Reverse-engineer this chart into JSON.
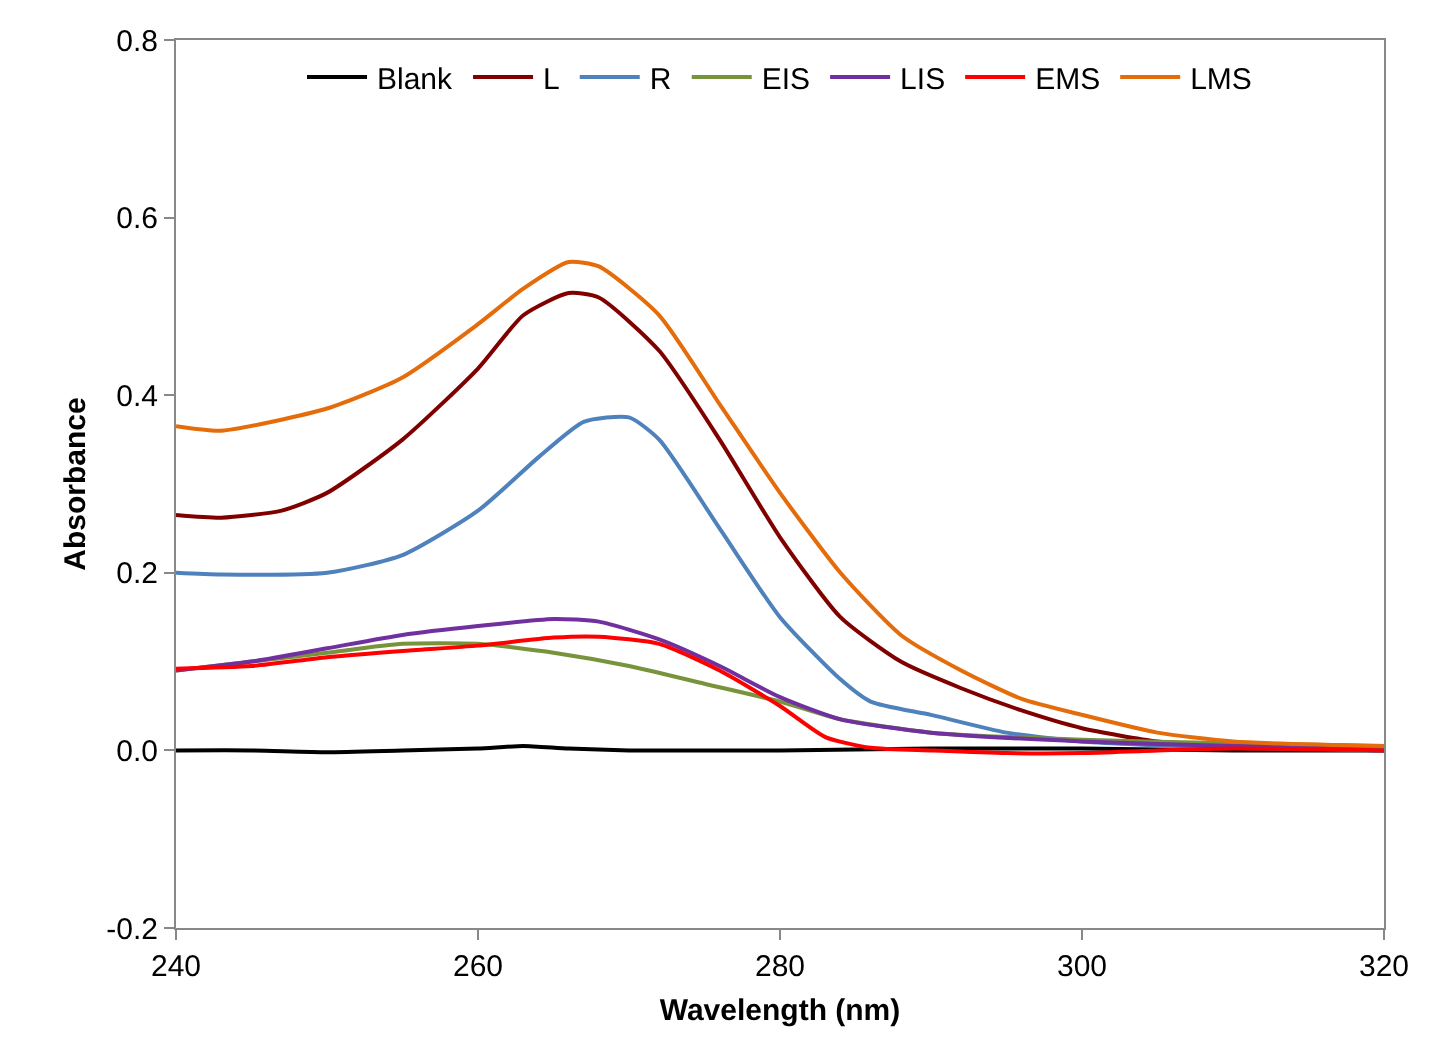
{
  "chart_data": {
    "type": "line",
    "xlabel": "Wavelength (nm)",
    "ylabel": "Absorbance",
    "xlim": [
      240,
      320
    ],
    "xticks": [
      240,
      260,
      280,
      300,
      320
    ],
    "ylim": [
      -0.2,
      0.8
    ],
    "yticks": [
      -0.2,
      {
        "value": 0,
        "label": "0.0"
      },
      0.2,
      0.4,
      0.6,
      0.8
    ],
    "legend": "top",
    "marker": "none",
    "line_style": "solid",
    "series": [
      {
        "name": "Blank",
        "color": "#000000",
        "x": [
          240,
          245,
          250,
          255,
          260,
          263,
          266,
          270,
          280,
          290,
          300,
          310,
          320
        ],
        "values": [
          0.0,
          0.0,
          -0.002,
          0.0,
          0.002,
          0.005,
          0.002,
          0.0,
          0.0,
          0.002,
          0.002,
          0.0,
          0.0
        ]
      },
      {
        "name": "L",
        "color": "#800000",
        "x": [
          240,
          243,
          247,
          250,
          255,
          260,
          263,
          266,
          268,
          272,
          276,
          280,
          284,
          288,
          292,
          296,
          300,
          305,
          310,
          320
        ],
        "values": [
          0.265,
          0.262,
          0.27,
          0.29,
          0.35,
          0.43,
          0.49,
          0.515,
          0.51,
          0.45,
          0.35,
          0.24,
          0.15,
          0.1,
          0.07,
          0.045,
          0.025,
          0.01,
          0.005,
          0.0
        ]
      },
      {
        "name": "R",
        "color": "#4f81bd",
        "x": [
          240,
          243,
          250,
          255,
          260,
          264,
          267,
          270,
          272,
          276,
          280,
          284,
          286,
          290,
          295,
          300,
          310,
          320
        ],
        "values": [
          0.2,
          0.198,
          0.2,
          0.22,
          0.27,
          0.33,
          0.37,
          0.375,
          0.35,
          0.25,
          0.15,
          0.08,
          0.055,
          0.04,
          0.02,
          0.01,
          0.003,
          0.0
        ]
      },
      {
        "name": "EIS",
        "color": "#77933c",
        "x": [
          240,
          245,
          250,
          255,
          260,
          265,
          270,
          275,
          280,
          284,
          290,
          300,
          310,
          320
        ],
        "values": [
          0.09,
          0.1,
          0.11,
          0.12,
          0.12,
          0.11,
          0.095,
          0.075,
          0.055,
          0.035,
          0.02,
          0.012,
          0.008,
          0.005
        ]
      },
      {
        "name": "LIS",
        "color": "#7030a0",
        "x": [
          240,
          245,
          250,
          255,
          260,
          265,
          268,
          272,
          276,
          280,
          284,
          290,
          300,
          310,
          320
        ],
        "values": [
          0.09,
          0.1,
          0.115,
          0.13,
          0.14,
          0.148,
          0.145,
          0.125,
          0.095,
          0.06,
          0.035,
          0.02,
          0.01,
          0.005,
          0.005
        ]
      },
      {
        "name": "EMS",
        "color": "#ff0000",
        "x": [
          240,
          245,
          250,
          255,
          260,
          265,
          268,
          272,
          276,
          280,
          283,
          286,
          290,
          295,
          300,
          305,
          310,
          320
        ],
        "values": [
          0.092,
          0.095,
          0.105,
          0.112,
          0.118,
          0.127,
          0.128,
          0.12,
          0.09,
          0.05,
          0.015,
          0.003,
          0.0,
          -0.003,
          -0.003,
          0.0,
          0.002,
          0.0
        ]
      },
      {
        "name": "LMS",
        "color": "#e46c0a",
        "x": [
          240,
          243,
          250,
          255,
          260,
          263,
          266,
          268,
          272,
          276,
          280,
          284,
          288,
          292,
          296,
          300,
          305,
          310,
          320
        ],
        "values": [
          0.365,
          0.36,
          0.385,
          0.42,
          0.48,
          0.52,
          0.55,
          0.545,
          0.49,
          0.39,
          0.29,
          0.2,
          0.13,
          0.09,
          0.058,
          0.04,
          0.02,
          0.01,
          0.005
        ]
      }
    ]
  }
}
